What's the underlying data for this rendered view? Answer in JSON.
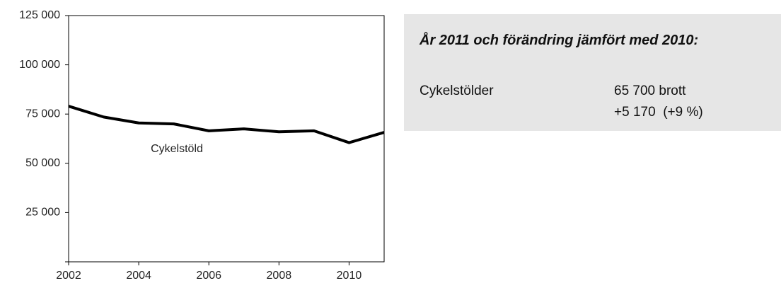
{
  "chart_data": {
    "type": "line",
    "x": [
      2002,
      2003,
      2004,
      2005,
      2006,
      2007,
      2008,
      2009,
      2010,
      2011
    ],
    "series": [
      {
        "name": "Cykelstöld",
        "color": "#000000",
        "values": [
          79000,
          73500,
          70500,
          70000,
          66500,
          67500,
          66000,
          66500,
          60500,
          65700
        ]
      }
    ],
    "xlim": [
      2002,
      2011
    ],
    "xticks": [
      2002,
      2004,
      2006,
      2008,
      2010
    ],
    "ylim": [
      0,
      125000
    ],
    "yticks": [
      {
        "value": 25000,
        "label": "25 000"
      },
      {
        "value": 50000,
        "label": "50 000"
      },
      {
        "value": 75000,
        "label": "75 000"
      },
      {
        "value": 100000,
        "label": "100 000"
      },
      {
        "value": 125000,
        "label": "125 000"
      }
    ],
    "grid": false
  },
  "panel": {
    "title": "År 2011 och förändring jämfört med 2010:",
    "rows": [
      {
        "label": "Cykelstölder",
        "lines": [
          "65 700 brott",
          "+5 170  (+9 %)"
        ]
      }
    ]
  }
}
